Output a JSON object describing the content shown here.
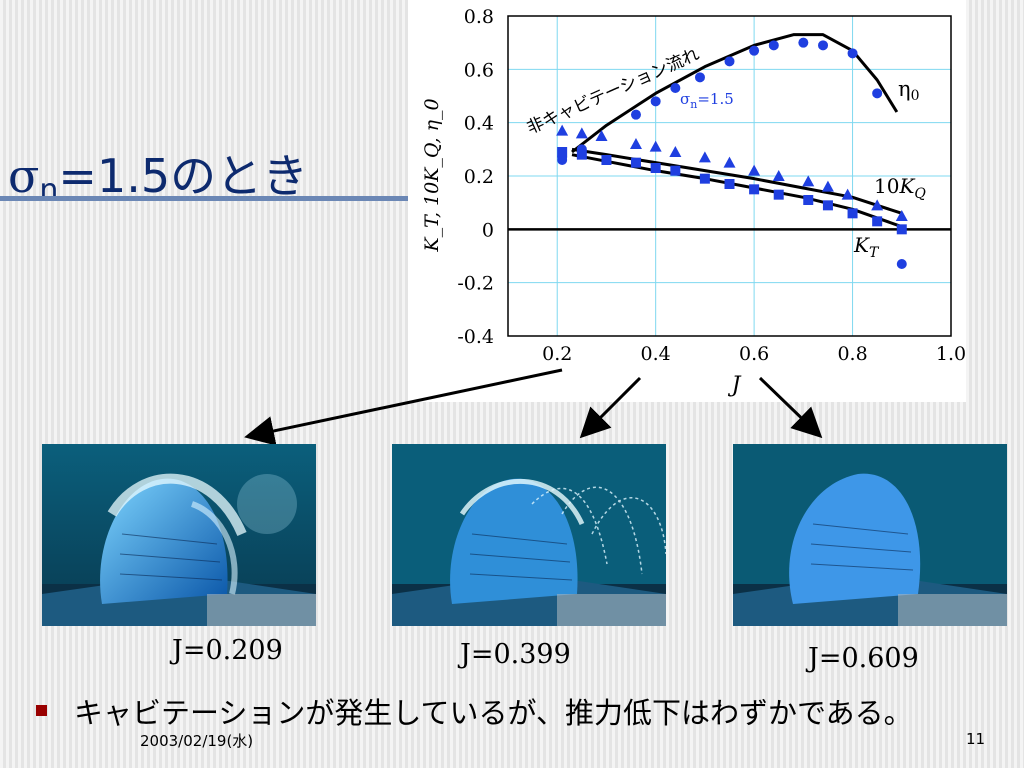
{
  "slide": {
    "title_symbol": "σ",
    "title_subscript": "n",
    "title_rest": "=1.5のとき",
    "bullet_text": "キャビテーションが発生しているが、推力低下はわずかである。",
    "footer_date": "2003/02/19(水)",
    "page_number": "11"
  },
  "photos": [
    {
      "caption": "J=0.209"
    },
    {
      "caption": "J=0.399"
    },
    {
      "caption": "J=0.609"
    }
  ],
  "colors": {
    "title": "#0d2a6e",
    "rule": "#6b87b5",
    "markers": "#1f3fe0",
    "lines": "#000000",
    "grid": "#7fd8f0",
    "bullet": "#990000"
  },
  "chart_data": {
    "type": "line",
    "xlabel": "J",
    "ylabel": "K_T, 10K_Q, η_0",
    "xlim": [
      0.1,
      1.0
    ],
    "ylim": [
      -0.4,
      0.8
    ],
    "xticks": [
      "0.2",
      "0.4",
      "0.6",
      "0.8",
      "1.0"
    ],
    "xtick_values": [
      0.2,
      0.4,
      0.6,
      0.8,
      1.0
    ],
    "yticks": [
      "0.8",
      "0.6",
      "0.4",
      "0.2",
      "0",
      "-0.2",
      "-0.4"
    ],
    "ytick_values": [
      0.8,
      0.6,
      0.4,
      0.2,
      0,
      -0.2,
      -0.4
    ],
    "grid": true,
    "annotations": {
      "noncav": "非キャビテーション流れ",
      "sigma_label": "σ",
      "sigma_sub": "n",
      "sigma_value": "=1.5",
      "eta_label": "η",
      "eta_sub": "0",
      "kq_prefix": "10",
      "kq_label": "K",
      "kq_sub": "Q",
      "kt_label": "K",
      "kt_sub": "T"
    },
    "curves": [
      {
        "name": "eta0",
        "x": [
          0.23,
          0.3,
          0.4,
          0.5,
          0.6,
          0.68,
          0.74,
          0.8,
          0.85,
          0.89
        ],
        "y": [
          0.29,
          0.39,
          0.51,
          0.61,
          0.69,
          0.73,
          0.73,
          0.67,
          0.56,
          0.44
        ]
      },
      {
        "name": "10KQ",
        "x": [
          0.23,
          0.3,
          0.4,
          0.5,
          0.6,
          0.7,
          0.8,
          0.9
        ],
        "y": [
          0.3,
          0.28,
          0.25,
          0.22,
          0.19,
          0.155,
          0.12,
          0.06
        ]
      },
      {
        "name": "KT",
        "x": [
          0.23,
          0.3,
          0.4,
          0.5,
          0.6,
          0.7,
          0.8,
          0.9
        ],
        "y": [
          0.28,
          0.255,
          0.22,
          0.19,
          0.155,
          0.12,
          0.075,
          0.01
        ]
      }
    ],
    "series": [
      {
        "name": "eta0",
        "marker": "circle",
        "x": [
          0.21,
          0.21,
          0.25,
          0.36,
          0.4,
          0.44,
          0.49,
          0.55,
          0.6,
          0.64,
          0.7,
          0.74,
          0.8,
          0.85,
          0.9
        ],
        "y": [
          0.26,
          0.27,
          0.3,
          0.43,
          0.48,
          0.53,
          0.57,
          0.63,
          0.67,
          0.69,
          0.7,
          0.69,
          0.66,
          0.51,
          -0.13
        ]
      },
      {
        "name": "10KQ",
        "marker": "triangle",
        "x": [
          0.21,
          0.25,
          0.29,
          0.36,
          0.4,
          0.44,
          0.5,
          0.55,
          0.6,
          0.65,
          0.71,
          0.75,
          0.79,
          0.85,
          0.9
        ],
        "y": [
          0.37,
          0.36,
          0.35,
          0.32,
          0.31,
          0.29,
          0.27,
          0.25,
          0.22,
          0.2,
          0.18,
          0.16,
          0.13,
          0.09,
          0.05
        ]
      },
      {
        "name": "KT",
        "marker": "square",
        "x": [
          0.21,
          0.25,
          0.3,
          0.36,
          0.4,
          0.44,
          0.5,
          0.55,
          0.6,
          0.65,
          0.71,
          0.75,
          0.8,
          0.85,
          0.9
        ],
        "y": [
          0.29,
          0.28,
          0.26,
          0.25,
          0.23,
          0.22,
          0.19,
          0.17,
          0.15,
          0.13,
          0.11,
          0.09,
          0.06,
          0.03,
          0.0
        ]
      }
    ]
  }
}
